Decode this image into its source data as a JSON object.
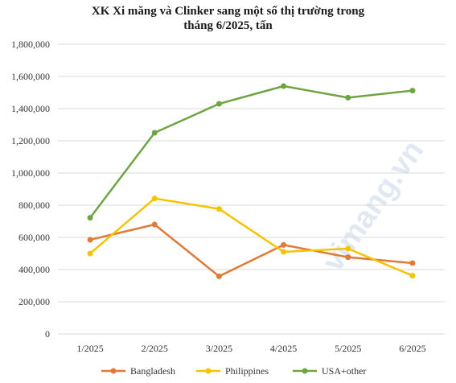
{
  "chart_data": {
    "type": "line",
    "title_line1": "XK Xi măng và Clinker sang một số thị trường trong",
    "title_line2": "tháng 6/2025, tấn",
    "categories": [
      "1/2025",
      "2/2025",
      "3/2025",
      "4/2025",
      "5/2025",
      "6/2025"
    ],
    "yticks": [
      "0",
      "200,000",
      "400,000",
      "600,000",
      "800,000",
      "1,000,000",
      "1,200,000",
      "1,400,000",
      "1,600,000",
      "1,800,000"
    ],
    "ylim": [
      0,
      1800000
    ],
    "grid": true,
    "legend_position": "bottom",
    "series": [
      {
        "name": "Bangladesh",
        "color": "#e07a36",
        "values": [
          585000,
          680000,
          358000,
          553000,
          477000,
          440000
        ]
      },
      {
        "name": "Philippines",
        "color": "#f5c400",
        "values": [
          500000,
          842000,
          777000,
          510000,
          530000,
          362000
        ]
      },
      {
        "name": "USA+other",
        "color": "#6ea544",
        "values": [
          722000,
          1250000,
          1430000,
          1540000,
          1468000,
          1512000
        ]
      }
    ],
    "watermark": "vimang.vn"
  }
}
